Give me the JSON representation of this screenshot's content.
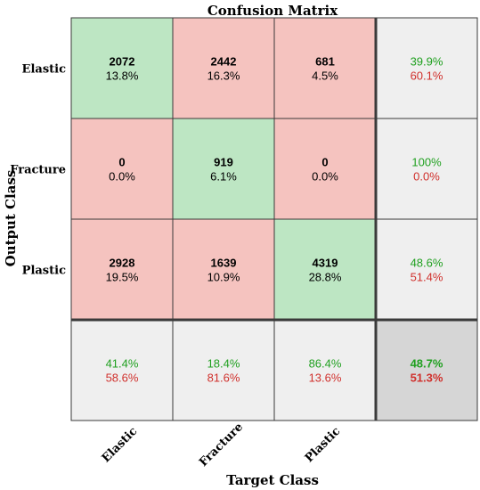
{
  "chart_data": {
    "type": "heatmap",
    "title": "Confusion Matrix",
    "xlabel": "Target Class",
    "ylabel": "Output Class",
    "target_classes": [
      "Elastic",
      "Fracture",
      "Plastic"
    ],
    "output_classes": [
      "Elastic",
      "Fracture",
      "Plastic"
    ],
    "matrix": [
      [
        {
          "count": "2072",
          "pct": "13.8%"
        },
        {
          "count": "2442",
          "pct": "16.3%"
        },
        {
          "count": "681",
          "pct": "4.5%"
        }
      ],
      [
        {
          "count": "0",
          "pct": "0.0%"
        },
        {
          "count": "919",
          "pct": "6.1%"
        },
        {
          "count": "0",
          "pct": "0.0%"
        }
      ],
      [
        {
          "count": "2928",
          "pct": "19.5%"
        },
        {
          "count": "1639",
          "pct": "10.9%"
        },
        {
          "count": "4319",
          "pct": "28.8%"
        }
      ]
    ],
    "row_summary": [
      {
        "correct": "39.9%",
        "incorrect": "60.1%"
      },
      {
        "correct": "100%",
        "incorrect": "0.0%"
      },
      {
        "correct": "48.6%",
        "incorrect": "51.4%"
      }
    ],
    "col_summary": [
      {
        "correct": "41.4%",
        "incorrect": "58.6%"
      },
      {
        "correct": "18.4%",
        "incorrect": "81.6%"
      },
      {
        "correct": "86.4%",
        "incorrect": "13.6%"
      }
    ],
    "overall": {
      "correct": "48.7%",
      "incorrect": "51.3%"
    }
  },
  "colors": {
    "correct_cell": "#bde6c3",
    "incorrect_cell": "#f5c3bf",
    "summary_cell": "#efefef",
    "overall_cell": "#d6d6d6",
    "correct_text": "#20a020",
    "incorrect_text": "#d0302c",
    "grid": "#3a3a3a",
    "text": "#000000"
  }
}
